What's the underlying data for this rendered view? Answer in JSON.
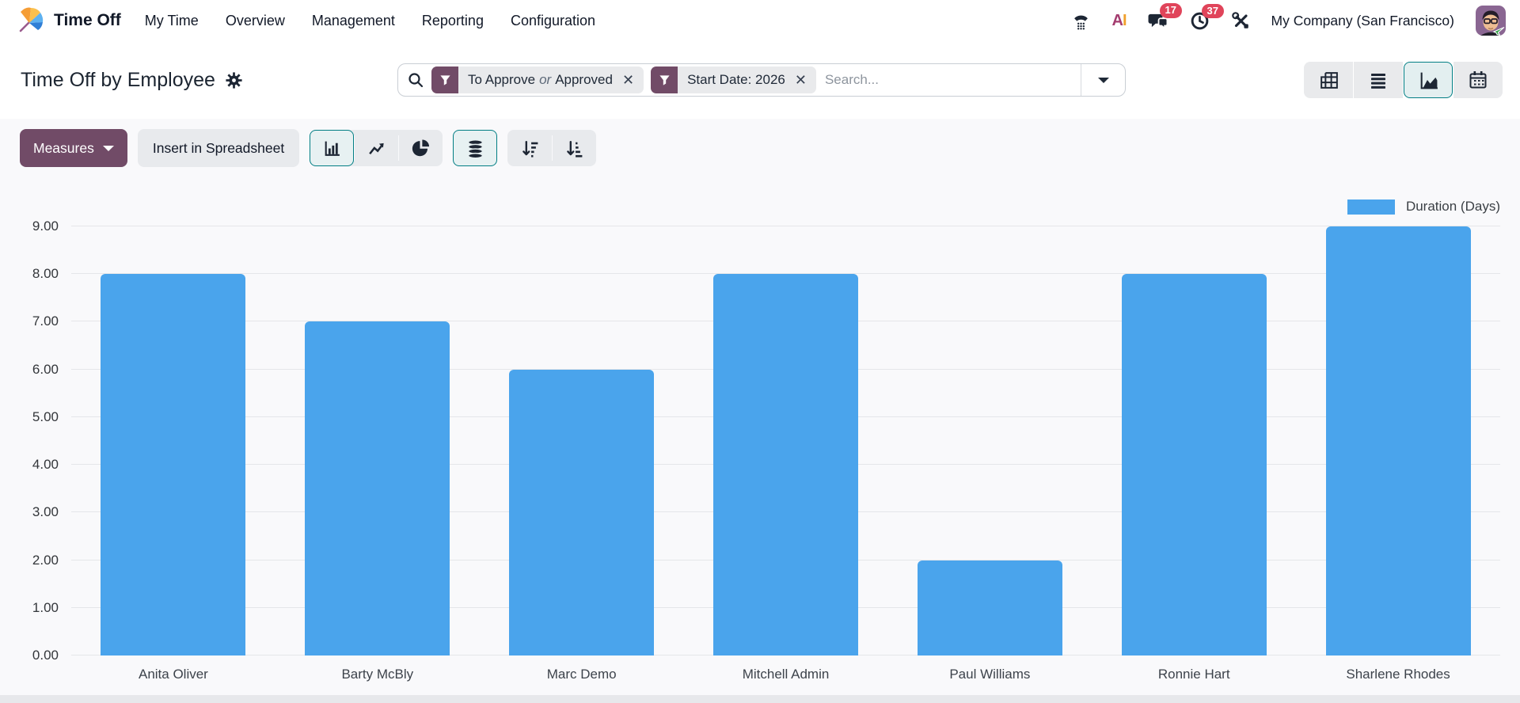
{
  "navbar": {
    "app_name": "Time Off",
    "menu_items": [
      "My Time",
      "Overview",
      "Management",
      "Reporting",
      "Configuration"
    ],
    "messages_badge": "17",
    "activities_badge": "37",
    "company_name": "My Company (San Francisco)",
    "icons": [
      "app-fan-icon",
      "voip-phone-icon",
      "ai-icon",
      "messages-icon",
      "activities-clock-icon",
      "tools-icon",
      "avatar"
    ]
  },
  "control_panel": {
    "title": "Time Off by Employee",
    "search": {
      "placeholder": "Search...",
      "facets": [
        {
          "left": "To Approve",
          "connector": "or",
          "right": "Approved"
        },
        {
          "label": "Start Date: 2026"
        }
      ]
    },
    "views": [
      "pivot",
      "list",
      "graph",
      "calendar"
    ],
    "active_view": "graph"
  },
  "toolbar": {
    "measures_label": "Measures",
    "insert_label": "Insert in Spreadsheet",
    "chart_types": [
      "bar",
      "line",
      "pie"
    ],
    "active_chart_type": "bar",
    "stacked_active": true,
    "sort_buttons": [
      "descending",
      "ascending"
    ]
  },
  "chart_data": {
    "type": "bar",
    "title": "",
    "xlabel": "",
    "ylabel": "",
    "categories": [
      "Anita Oliver",
      "Barty McBly",
      "Marc Demo",
      "Mitchell Admin",
      "Paul Williams",
      "Ronnie Hart",
      "Sharlene Rhodes"
    ],
    "series": [
      {
        "name": "Duration (Days)",
        "values": [
          8,
          7,
          6,
          8,
          2,
          8,
          9
        ]
      }
    ],
    "ylim": [
      0,
      9
    ],
    "ytick_step": 1,
    "ytick_decimals": 2,
    "grid": true,
    "legend_position": "top-right",
    "bar_color": "#4aa4ec"
  },
  "colors": {
    "accent_teal": "#017e84",
    "primary_plum": "#714b67",
    "badge_red": "#e0445a",
    "bar_blue": "#4aa4ec"
  }
}
